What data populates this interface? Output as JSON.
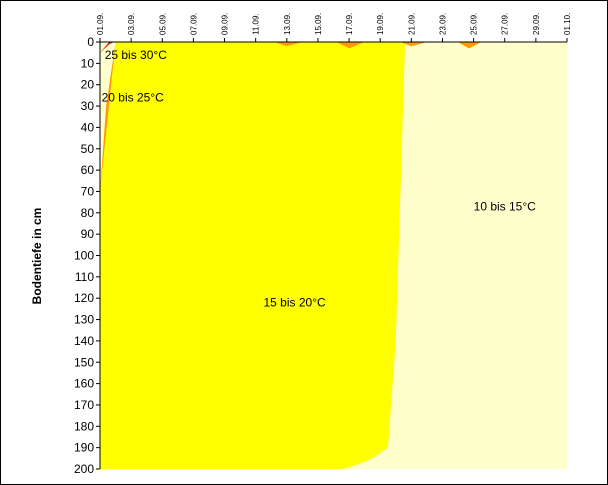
{
  "chart_data": {
    "type": "area",
    "title": "",
    "xlabel": "",
    "ylabel": "Bodentiefe in cm",
    "x_ticks": [
      "01.09.",
      "03.09.",
      "05.09.",
      "07.09.",
      "09.09.",
      "11.09.",
      "13.09.",
      "15.09.",
      "17.09.",
      "19.09.",
      "21.09.",
      "23.09.",
      "25.09.",
      "27.09.",
      "29.09.",
      "01.10."
    ],
    "x_range": [
      "01.09.",
      "01.10."
    ],
    "x_axis_position": "top",
    "y_ticks": [
      0,
      10,
      20,
      30,
      40,
      50,
      60,
      70,
      80,
      90,
      100,
      110,
      120,
      130,
      140,
      150,
      160,
      170,
      180,
      190,
      200
    ],
    "ylim": [
      0,
      200
    ],
    "y_inverted": true,
    "grid": false,
    "legend": "none",
    "bands": [
      {
        "name": "10 bis 15°C",
        "color": "#FFFFCC",
        "boundary": [
          [
            0,
            200
          ],
          [
            30,
            200
          ]
        ]
      },
      {
        "name": "15 bis 20°C",
        "color": "#FFFF00",
        "boundary": [
          [
            0,
            70
          ],
          [
            1,
            0
          ],
          [
            11.2,
            0
          ],
          [
            12,
            2
          ],
          [
            13,
            0
          ],
          [
            15.2,
            0
          ],
          [
            16,
            3
          ],
          [
            17,
            0
          ],
          [
            19.3,
            0
          ],
          [
            20,
            2
          ],
          [
            21,
            0
          ],
          [
            23,
            0
          ],
          [
            23.7,
            3
          ],
          [
            24.5,
            0
          ],
          [
            30,
            0
          ]
        ],
        "bottom_edge": [
          [
            0,
            200
          ],
          [
            15.5,
            200
          ],
          [
            16.5,
            198
          ],
          [
            17.5,
            195
          ],
          [
            18.5,
            190
          ],
          [
            19,
            140
          ],
          [
            19.6,
            0
          ]
        ]
      },
      {
        "name": "20 bis 25°C",
        "color": "#FF9900",
        "boundary": [
          [
            0,
            70
          ],
          [
            1,
            0
          ],
          [
            11.2,
            0
          ],
          [
            12,
            2
          ],
          [
            13,
            0
          ],
          [
            15.2,
            0
          ],
          [
            16,
            3
          ],
          [
            17,
            0
          ],
          [
            19.3,
            0
          ],
          [
            20,
            2
          ],
          [
            21,
            0
          ],
          [
            23,
            0
          ],
          [
            23.7,
            3
          ],
          [
            24.5,
            0
          ],
          [
            30,
            0
          ]
        ],
        "bottom_edge": [
          [
            0,
            70
          ],
          [
            0.4,
            30
          ],
          [
            0.9,
            5
          ],
          [
            1,
            0
          ]
        ]
      },
      {
        "name": "25 bis 30°C",
        "color": "#CC0000",
        "boundary": [
          [
            0,
            5
          ],
          [
            0.6,
            0
          ],
          [
            0.9,
            0
          ]
        ],
        "bottom_edge": [
          [
            0,
            5
          ],
          [
            0.6,
            1
          ],
          [
            0.9,
            0
          ]
        ]
      }
    ],
    "labels": [
      {
        "text": "25 bis 30°C",
        "x": 2.3,
        "y": 6
      },
      {
        "text": "20 bis 25°C",
        "x": 2.1,
        "y": 26
      },
      {
        "text": "15 bis 20°C",
        "x": 12.5,
        "y": 122
      },
      {
        "text": "10 bis 15°C",
        "x": 26,
        "y": 77
      }
    ]
  }
}
